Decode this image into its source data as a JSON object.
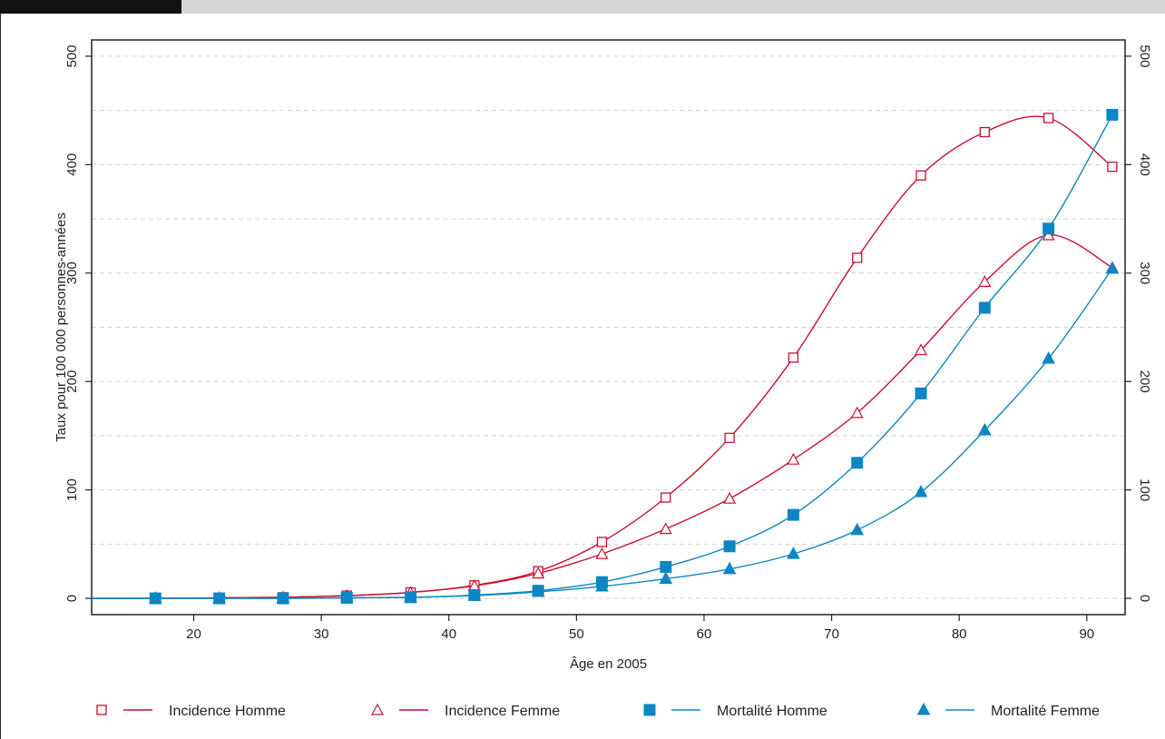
{
  "chart_data": {
    "type": "line",
    "xlabel": "Âge en 2005",
    "ylabel": "Taux pour 100 000 personnes-années",
    "xlim": [
      12,
      93
    ],
    "ylim": [
      -15,
      515
    ],
    "x_ticks": [
      20,
      30,
      40,
      50,
      60,
      70,
      80,
      90
    ],
    "y_ticks": [
      0,
      100,
      200,
      300,
      400,
      500
    ],
    "grid": "horizontal dashed",
    "secondary_y_axis": "right (mirror)",
    "legend_position": "bottom",
    "x": [
      17,
      22,
      27,
      32,
      37,
      42,
      47,
      52,
      57,
      62,
      67,
      72,
      77,
      82,
      87,
      92
    ],
    "series": [
      {
        "name": "Incidence Homme",
        "color": "#c8102e",
        "marker": "square-open",
        "values": [
          0,
          0.5,
          1,
          2.5,
          5.5,
          12,
          25,
          52,
          93,
          148,
          222,
          314,
          390,
          430,
          443,
          398
        ]
      },
      {
        "name": "Incidence Femme",
        "color": "#c8102e",
        "marker": "triangle-open",
        "values": [
          0,
          0.5,
          1,
          2.5,
          5.5,
          11.5,
          23,
          41,
          64,
          92,
          128,
          171,
          229,
          292,
          335,
          305
        ]
      },
      {
        "name": "Mortalité Homme",
        "color": "#0e86c4",
        "marker": "square-filled",
        "values": [
          0,
          0,
          0,
          0.5,
          1,
          3,
          7,
          15,
          29,
          48,
          77,
          125,
          189,
          268,
          341,
          446
        ]
      },
      {
        "name": "Mortalité Femme",
        "color": "#0e86c4",
        "marker": "triangle-filled",
        "values": [
          0,
          0,
          0,
          0.5,
          1,
          2.5,
          6,
          11,
          18,
          27,
          41,
          63,
          98,
          155,
          221,
          304
        ]
      }
    ]
  }
}
